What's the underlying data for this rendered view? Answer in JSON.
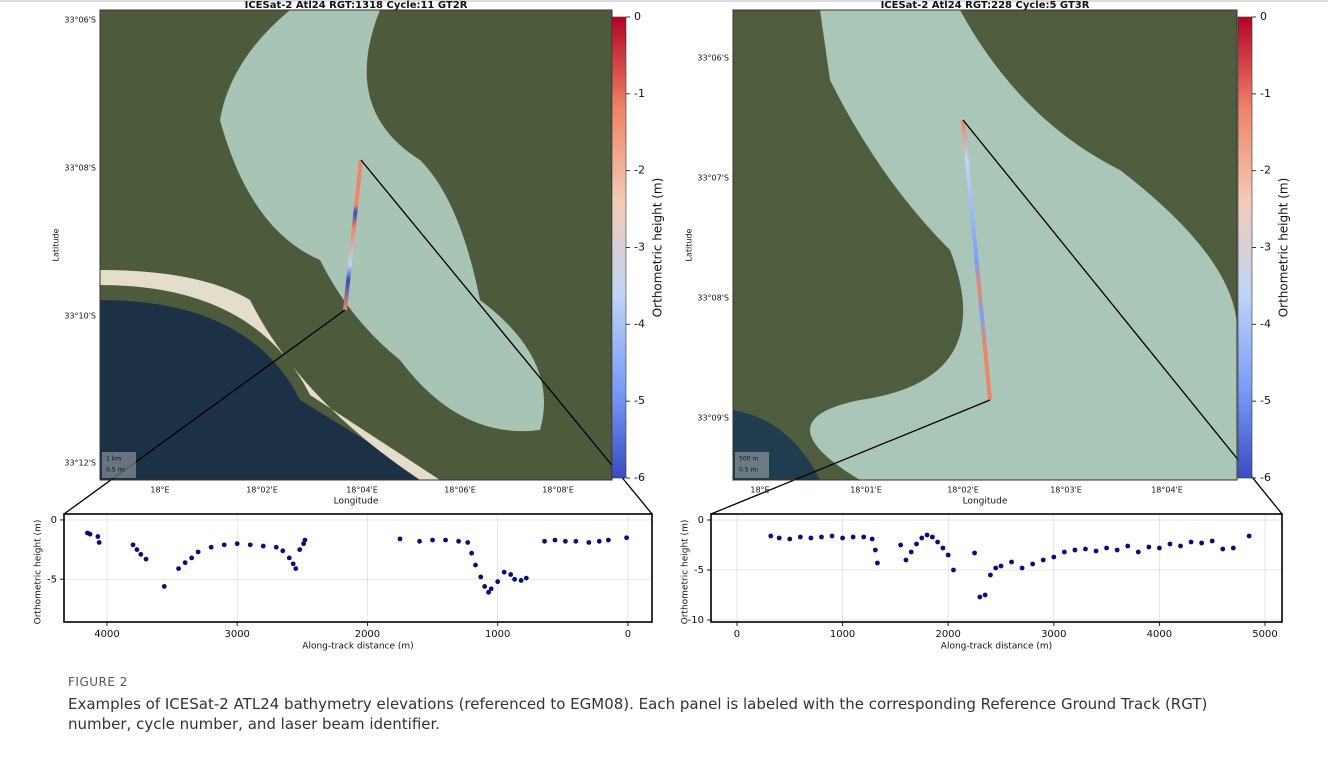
{
  "maps": [
    {
      "title": "ICESat-2 Atl24 RGT:1318 Cycle:11 GT2R",
      "xlabel": "Longitude",
      "ylabel": "Latitude",
      "xticks": [
        "18°E",
        "18°02'E",
        "18°04'E",
        "18°06'E",
        "18°08'E"
      ],
      "yticks": [
        "33°06'S",
        "33°08'S",
        "33°10'S",
        "33°12'S"
      ],
      "scale": [
        "1 km",
        "0.5 mi"
      ],
      "colorbar": {
        "label": "Orthometric height (m)",
        "lim": [
          -6,
          0
        ],
        "ticks": [
          0,
          -1,
          -2,
          -3,
          -4,
          -5,
          -6
        ],
        "colors": [
          "#3b4cc0",
          "#7b9ff9",
          "#c0d4f5",
          "#f2cbb7",
          "#ee8468",
          "#b40426"
        ]
      }
    },
    {
      "title": "ICESat-2 Atl24 RGT:228 Cycle:5 GT3R",
      "xlabel": "Longitude",
      "ylabel": "Latitude",
      "xticks": [
        "18°E",
        "18°01'E",
        "18°02'E",
        "18°03'E",
        "18°04'E"
      ],
      "yticks": [
        "33°06'S",
        "33°07'S",
        "33°08'S",
        "33°09'S"
      ],
      "scale": [
        "500 m",
        "0.5 mi"
      ],
      "colorbar": {
        "label": "Orthometric height (m)",
        "lim": [
          -6,
          0
        ],
        "ticks": [
          0,
          -1,
          -2,
          -3,
          -4,
          -5,
          -6
        ],
        "colors": [
          "#3b4cc0",
          "#7b9ff9",
          "#c0d4f5",
          "#f2cbb7",
          "#ee8468",
          "#b40426"
        ]
      }
    }
  ],
  "chart_data": [
    {
      "type": "scatter",
      "xlabel": "Along-track distance (m)",
      "ylabel": "Orthometric height (m)",
      "color": "#0b0b7d",
      "grid": true,
      "xlim": [
        4330,
        -185
      ],
      "ylim": [
        -8.6,
        0.5
      ],
      "xticks": [
        4000,
        3000,
        2000,
        1000,
        0
      ],
      "yticks": [
        0,
        -5
      ],
      "x": [
        4150,
        4130,
        4070,
        4060,
        3800,
        3770,
        3740,
        3700,
        3560,
        3450,
        3400,
        3350,
        3300,
        3200,
        3100,
        3000,
        2900,
        2800,
        2700,
        2650,
        2600,
        2570,
        2550,
        2520,
        2490,
        2480,
        1750,
        1600,
        1500,
        1400,
        1300,
        1230,
        1200,
        1170,
        1130,
        1100,
        1070,
        1050,
        1000,
        950,
        900,
        870,
        820,
        780,
        640,
        560,
        480,
        400,
        300,
        220,
        150,
        10
      ],
      "values": [
        -1.1,
        -1.2,
        -1.4,
        -1.9,
        -2.1,
        -2.5,
        -2.9,
        -3.3,
        -5.6,
        -4.1,
        -3.6,
        -3.2,
        -2.7,
        -2.3,
        -2.1,
        -2.0,
        -2.1,
        -2.2,
        -2.3,
        -2.6,
        -3.2,
        -3.7,
        -4.1,
        -2.5,
        -2.0,
        -1.7,
        -1.6,
        -1.8,
        -1.7,
        -1.7,
        -1.8,
        -1.9,
        -2.8,
        -3.8,
        -4.8,
        -5.6,
        -6.1,
        -5.8,
        -5.2,
        -4.4,
        -4.6,
        -5.0,
        -5.1,
        -4.9,
        -1.8,
        -1.7,
        -1.8,
        -1.8,
        -1.9,
        -1.8,
        -1.7,
        -1.5
      ]
    },
    {
      "type": "scatter",
      "xlabel": "Along-track distance (m)",
      "ylabel": "Orthometric height (m)",
      "color": "#0b0b7d",
      "grid": true,
      "xlim": [
        -246,
        5161
      ],
      "ylim": [
        -10.2,
        0.6
      ],
      "xticks": [
        0,
        1000,
        2000,
        3000,
        4000,
        5000
      ],
      "yticks": [
        0,
        -5,
        -10
      ],
      "x": [
        320,
        400,
        500,
        600,
        700,
        800,
        900,
        1000,
        1100,
        1200,
        1280,
        1310,
        1330,
        1550,
        1600,
        1650,
        1700,
        1750,
        1800,
        1850,
        1900,
        1950,
        2000,
        2050,
        2250,
        2300,
        2350,
        2400,
        2450,
        2500,
        2600,
        2700,
        2800,
        2900,
        3000,
        3100,
        3200,
        3300,
        3400,
        3500,
        3600,
        3700,
        3800,
        3900,
        4000,
        4100,
        4200,
        4300,
        4400,
        4500,
        4600,
        4700,
        4850
      ],
      "values": [
        -1.6,
        -1.8,
        -1.9,
        -1.7,
        -1.8,
        -1.7,
        -1.6,
        -1.8,
        -1.7,
        -1.7,
        -1.9,
        -3.0,
        -4.3,
        -2.5,
        -4.0,
        -3.2,
        -2.4,
        -1.8,
        -1.5,
        -1.7,
        -2.2,
        -2.8,
        -3.5,
        -5.0,
        -3.3,
        -7.7,
        -7.5,
        -5.5,
        -4.8,
        -4.6,
        -4.2,
        -4.8,
        -4.4,
        -4.0,
        -3.7,
        -3.2,
        -3.0,
        -2.9,
        -3.1,
        -2.8,
        -3.0,
        -2.6,
        -3.2,
        -2.7,
        -2.8,
        -2.4,
        -2.6,
        -2.2,
        -2.3,
        -2.1,
        -2.9,
        -2.8,
        -1.6
      ]
    }
  ],
  "caption": {
    "label": "FIGURE 2",
    "text": "Examples of ICESat-2 ATL24 bathymetry elevations (referenced to EGM08). Each panel is labeled with the corresponding Reference Ground Track (RGT) number, cycle number, and laser beam identifier."
  }
}
